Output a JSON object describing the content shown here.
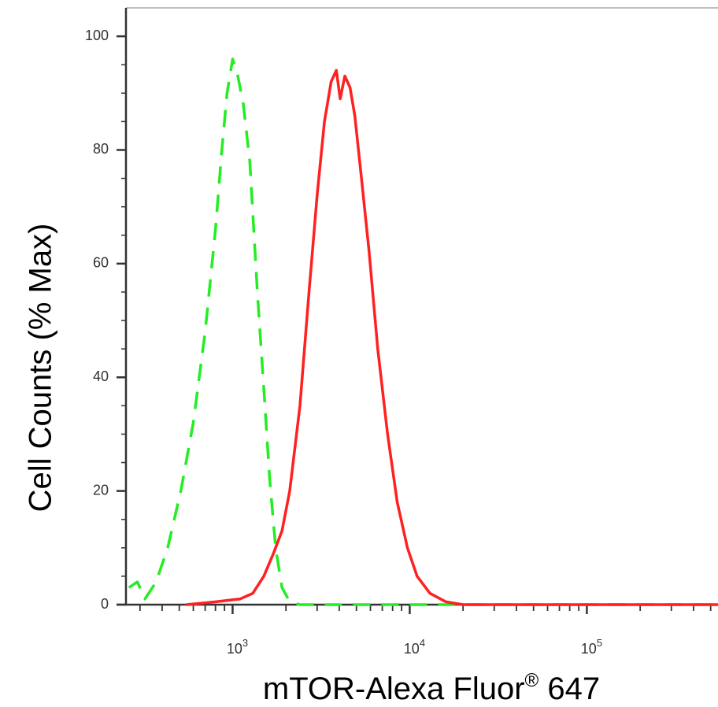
{
  "chart_data": {
    "type": "line",
    "title": "",
    "xlabel": "mTOR-Alexa Fluor",
    "xlabel_super": "®",
    "xlabel_suffix": " 647",
    "ylabel": "Cell Counts (% Max)",
    "xscale": "log",
    "xlim": [
      250,
      550000
    ],
    "ylim": [
      0,
      105
    ],
    "y_ticks": [
      0,
      20,
      40,
      60,
      80,
      100
    ],
    "x_major_ticks": [
      {
        "value": 1000,
        "base": "10",
        "exp": "3"
      },
      {
        "value": 10000,
        "base": "10",
        "exp": "4"
      },
      {
        "value": 100000,
        "base": "10",
        "exp": "5"
      }
    ],
    "grid": false,
    "legend": "none",
    "series": [
      {
        "color": "#22ee22",
        "style": "dashed",
        "x": [
          260,
          290,
          320,
          370,
          430,
          510,
          600,
          700,
          800,
          870,
          930,
          1000,
          1070,
          1150,
          1250,
          1380,
          1500,
          1620,
          1750,
          1900,
          2100,
          2400,
          3000,
          4000,
          6000,
          100000,
          550000
        ],
        "y": [
          3,
          4,
          1,
          4,
          10,
          20,
          32,
          48,
          66,
          80,
          90,
          96,
          93,
          88,
          78,
          55,
          38,
          22,
          10,
          3,
          0.5,
          0,
          0,
          0,
          0,
          0,
          0
        ]
      },
      {
        "color": "#ff2020",
        "style": "solid",
        "x": [
          550,
          800,
          1100,
          1300,
          1500,
          1700,
          1900,
          2100,
          2400,
          2700,
          3000,
          3300,
          3600,
          3850,
          4050,
          4300,
          4600,
          4900,
          5300,
          5900,
          6600,
          7500,
          8500,
          9700,
          11000,
          13000,
          16000,
          20000,
          30000,
          100000,
          550000
        ],
        "y": [
          0,
          0.5,
          1,
          2,
          5,
          9,
          13,
          20,
          35,
          55,
          72,
          85,
          92,
          94,
          89,
          93,
          91,
          86,
          76,
          62,
          45,
          30,
          18,
          10,
          5,
          2,
          0.5,
          0,
          0,
          0,
          0
        ]
      }
    ]
  }
}
